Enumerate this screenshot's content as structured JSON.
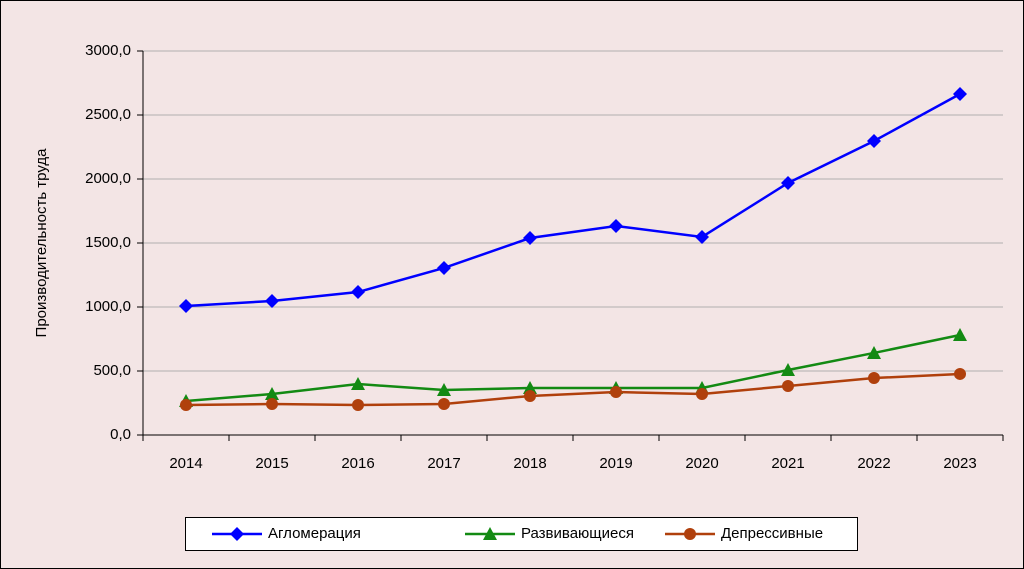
{
  "chart_data": {
    "type": "line",
    "y_label": "Производительность труда",
    "categories": [
      "2014",
      "2015",
      "2016",
      "2017",
      "2018",
      "2019",
      "2020",
      "2021",
      "2022",
      "2023"
    ],
    "series": [
      {
        "name": "Агломерация",
        "color": "#0000ff",
        "marker": "diamond",
        "values": [
          1008,
          1047,
          1117,
          1305,
          1539,
          1633,
          1547,
          1969,
          2297,
          2664
        ]
      },
      {
        "name": "Развивающиеся",
        "color": "#138a13",
        "marker": "triangle",
        "values": [
          266,
          320,
          398,
          352,
          367,
          367,
          367,
          508,
          641,
          781
        ]
      },
      {
        "name": "Депрессивные",
        "color": "#b0400c",
        "marker": "circle",
        "values": [
          234,
          242,
          234,
          242,
          305,
          336,
          320,
          383,
          445,
          477
        ]
      }
    ],
    "ylim": [
      0,
      3000
    ],
    "yticks": [
      {
        "value": 0,
        "label": "0,0"
      },
      {
        "value": 500,
        "label": "500,0"
      },
      {
        "value": 1000,
        "label": "1000,0"
      },
      {
        "value": 1500,
        "label": "1500,0"
      },
      {
        "value": 2000,
        "label": "2000,0"
      },
      {
        "value": 2500,
        "label": "2500,0"
      },
      {
        "value": 3000,
        "label": "3000,0"
      }
    ],
    "grid": true,
    "legend": "bottom"
  }
}
